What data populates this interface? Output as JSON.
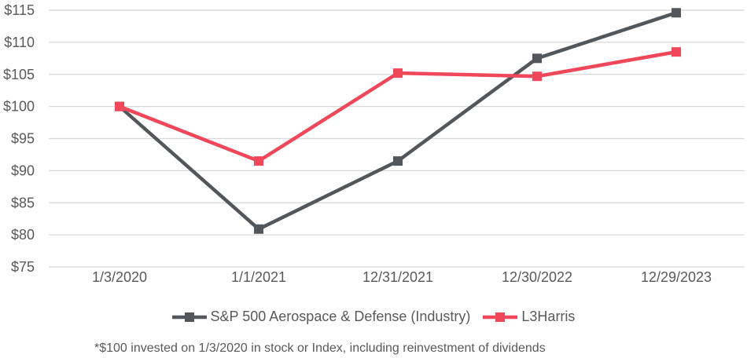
{
  "chart_data": {
    "type": "line",
    "title": "",
    "categories": [
      "1/3/2020",
      "1/1/2021",
      "12/31/2021",
      "12/30/2022",
      "12/29/2023"
    ],
    "series": [
      {
        "name": "S&P 500 Aerospace & Defense (Industry)",
        "color": "#53565A",
        "marker": "square",
        "values": [
          100.0,
          80.9,
          91.5,
          107.5,
          114.6
        ]
      },
      {
        "name": "L3Harris",
        "color": "#F0485A",
        "marker": "square",
        "values": [
          100.0,
          91.5,
          105.2,
          104.7,
          108.5
        ]
      }
    ],
    "xlabel": "",
    "ylabel": "",
    "ylim": [
      75,
      115
    ],
    "ytick_step": 5,
    "ytick_prefix": "$",
    "grid": true,
    "legend_position": "bottom"
  },
  "footnote": "*$100 invested on 1/3/2020 in stock or Index, including reinvestment of dividends",
  "colors": {
    "text": "#595959",
    "gridline": "#D8D8D8",
    "background": "#FFFFFF"
  }
}
